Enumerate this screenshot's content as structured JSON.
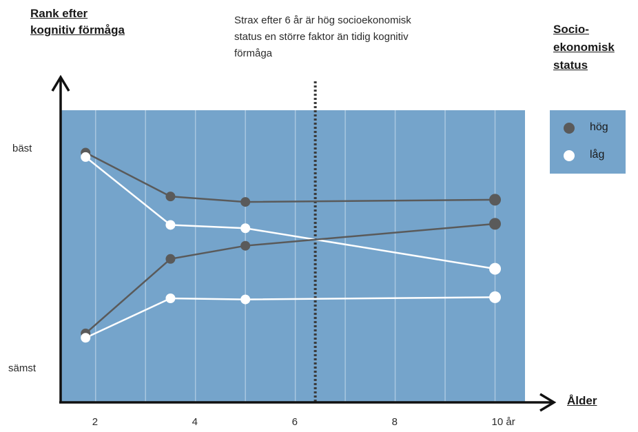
{
  "chart_data": {
    "type": "line",
    "ylabel": "Rank efter kognitiv förmåga",
    "xlabel": "Ålder",
    "y_tick_labels": {
      "best": "bäst",
      "worst": "sämst"
    },
    "x_ticks": [
      2,
      4,
      6,
      8,
      10
    ],
    "x_tick_labels": [
      "2",
      "4",
      "6",
      "8",
      "10 år"
    ],
    "xlim": [
      1.3,
      10.6
    ],
    "ylim": [
      0,
      1
    ],
    "annotation": {
      "text": "Strax efter 6 år är hög socioekonomisk status en större faktor än tidig kognitiv förmåga",
      "x": 6.4
    },
    "legend": {
      "title": "Socio-ekonomisk status",
      "placement": "right"
    },
    "series": [
      {
        "name": "hög",
        "group": "high-start",
        "color": "#5a5a5a",
        "x": [
          1.8,
          3.5,
          5,
          10
        ],
        "y": [
          0.97,
          0.77,
          0.745,
          0.755
        ]
      },
      {
        "name": "låg",
        "group": "high-start",
        "color": "#ffffff",
        "x": [
          1.8,
          3.5,
          5,
          10
        ],
        "y": [
          0.95,
          0.64,
          0.625,
          0.44
        ]
      },
      {
        "name": "hög",
        "group": "low-start",
        "color": "#5a5a5a",
        "x": [
          1.8,
          3.5,
          5,
          10
        ],
        "y": [
          0.145,
          0.485,
          0.545,
          0.645
        ]
      },
      {
        "name": "låg",
        "group": "low-start",
        "color": "#ffffff",
        "x": [
          1.8,
          3.5,
          5,
          10
        ],
        "y": [
          0.125,
          0.305,
          0.3,
          0.31
        ]
      }
    ]
  },
  "legend_items": [
    {
      "label": "hög",
      "color": "#5a5a5a"
    },
    {
      "label": "låg",
      "color": "#ffffff"
    }
  ]
}
